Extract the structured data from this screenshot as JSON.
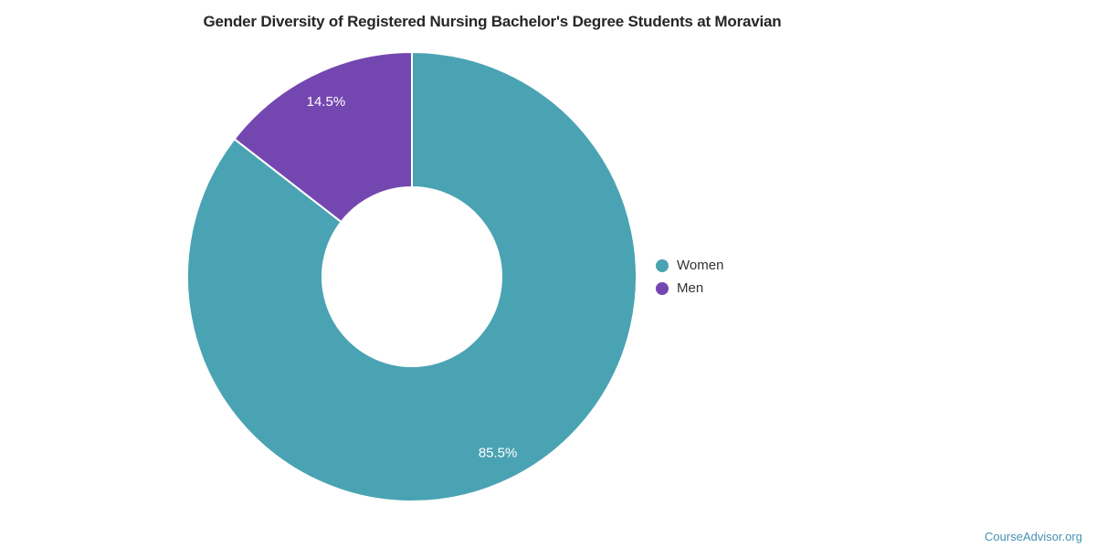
{
  "chart_data": {
    "type": "pie",
    "donut": true,
    "title": "Gender Diversity of Registered Nursing Bachelor's Degree Students at Moravian",
    "legend_position": "right",
    "direction": "clockwise",
    "start_angle_deg": 0,
    "slice_label_color": "#ffffff",
    "series": [
      {
        "name": "Women",
        "value": 85.5,
        "label": "85.5%",
        "color": "#4aa3b3"
      },
      {
        "name": "Men",
        "value": 14.5,
        "label": "14.5%",
        "color": "#7447b0"
      }
    ]
  },
  "legend": {
    "items": [
      {
        "label": "Women",
        "color": "#4aa3b3"
      },
      {
        "label": "Men",
        "color": "#7447b0"
      }
    ]
  },
  "watermark": {
    "label": "CourseAdvisor.org",
    "color": "#4691b4"
  }
}
